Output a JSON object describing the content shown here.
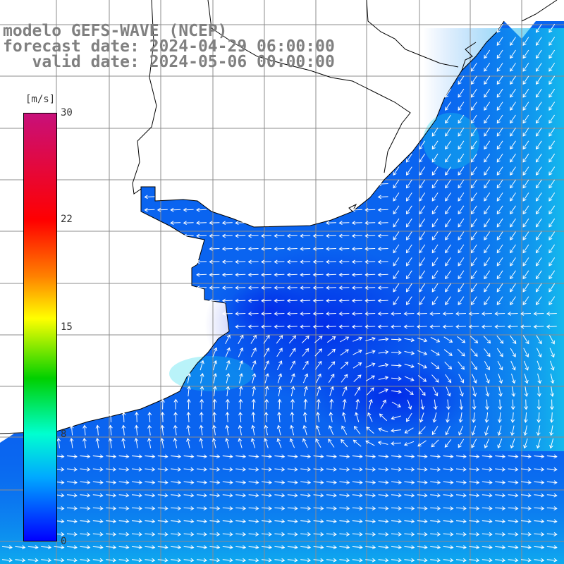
{
  "title": {
    "line1": "modelo GEFS-WAVE (NCEP)",
    "line2": "forecast date: 2024-04-29 06:00:00",
    "line3": "   valid date: 2024-05-06 00:00:00"
  },
  "legend": {
    "unit": "[m/s]",
    "ticks": [
      "30",
      "22",
      "15",
      "8",
      "0"
    ],
    "colors": [
      "#c8107a",
      "#ff0000",
      "#ff8000",
      "#ffff00",
      "#00d000",
      "#00ffd0",
      "#00aaff",
      "#0000ff"
    ]
  },
  "map": {
    "field": "wind speed with direction arrows",
    "colors": {
      "water_low": "#0033ee",
      "water_mid": "#0a6ff0",
      "water_high": "#11c9ec",
      "land": "#ffffff",
      "grid": "#8c8c8c"
    }
  }
}
